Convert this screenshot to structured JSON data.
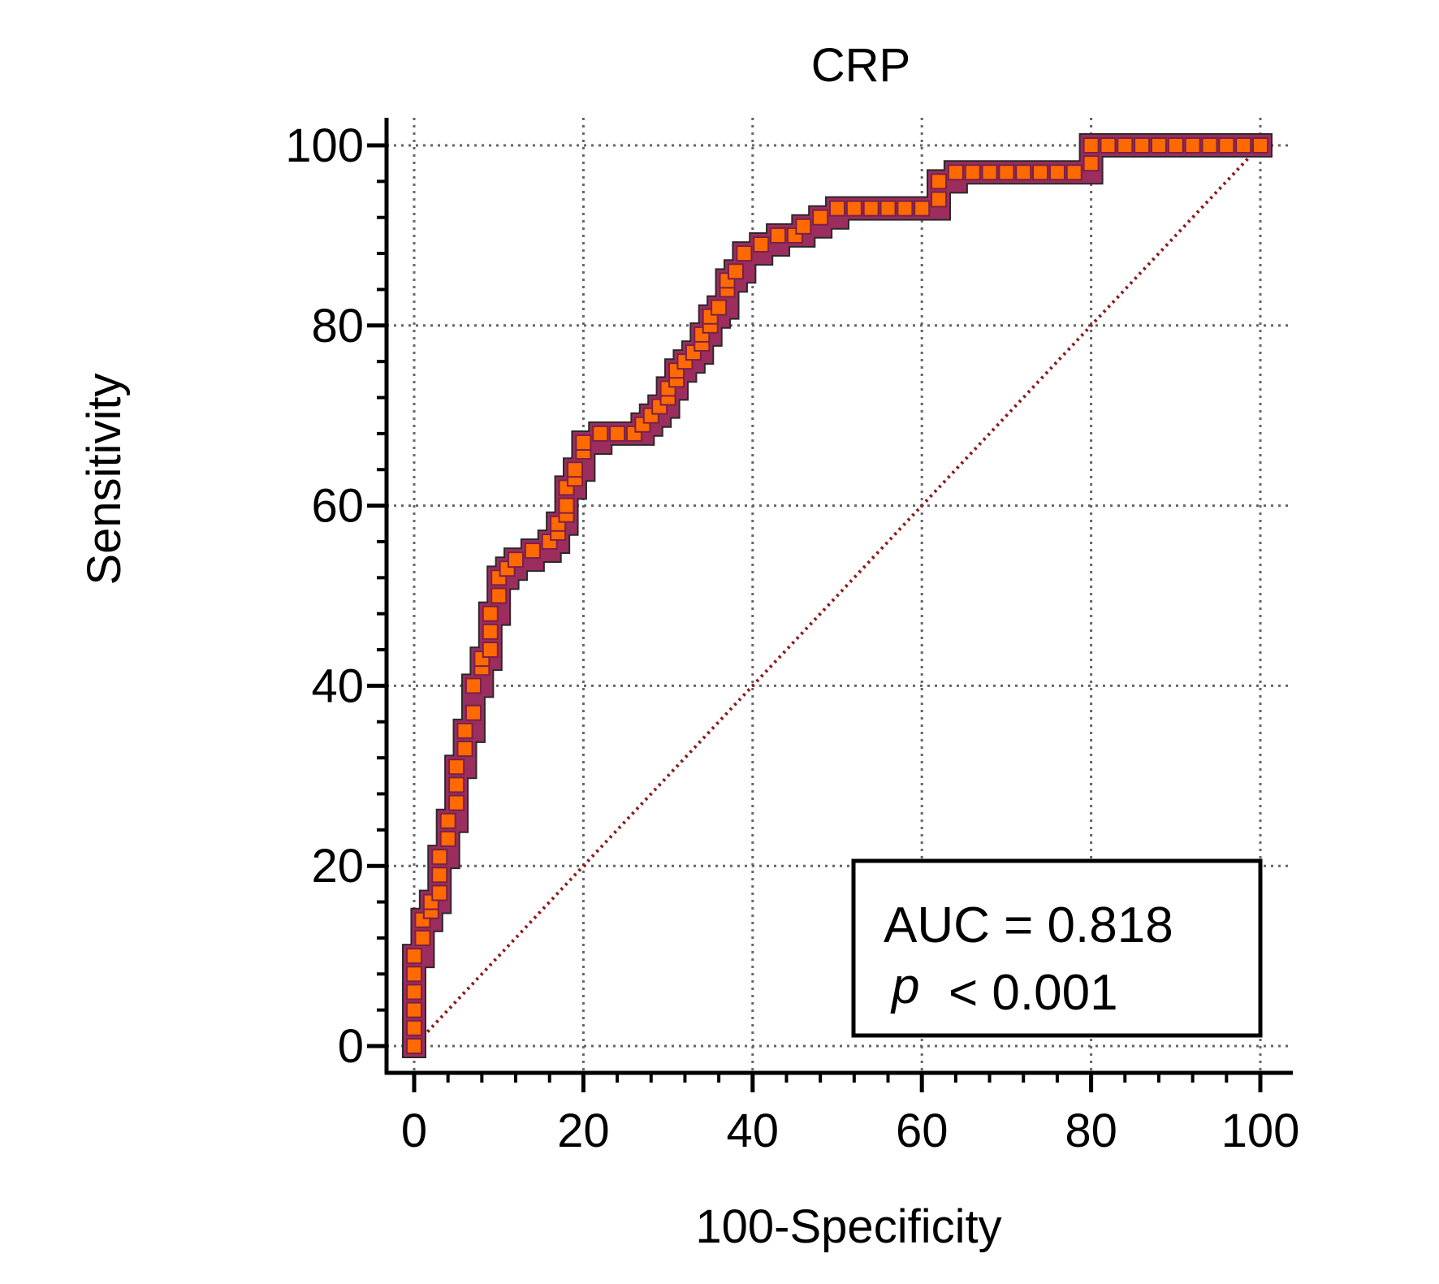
{
  "chart_data": {
    "type": "line",
    "title": "CRP",
    "xlabel": "100-Specificity",
    "ylabel": "Sensitivity",
    "xlim": [
      0,
      100
    ],
    "ylim": [
      0,
      100
    ],
    "xticks": [
      "0",
      "20",
      "40",
      "60",
      "80",
      "100"
    ],
    "yticks": [
      "0",
      "20",
      "40",
      "60",
      "80",
      "100"
    ],
    "grid": true,
    "annotation": {
      "auc_text": "AUC = 0.818",
      "p_symbol": "p",
      "p_text": "< 0.001",
      "placement": "bottom-right"
    },
    "reference_line": {
      "x": [
        0,
        100
      ],
      "y": [
        0,
        100
      ],
      "style": "dotted",
      "color": "#8b1a1a"
    },
    "series": [
      {
        "x": [
          0,
          0,
          0,
          0,
          0,
          0,
          1,
          1,
          2,
          2,
          3,
          3,
          3,
          4,
          4,
          5,
          5,
          5,
          6,
          6,
          7,
          7,
          8,
          8,
          9,
          9,
          9,
          10,
          10,
          11,
          12,
          14,
          16,
          17,
          17,
          18,
          18,
          18,
          19,
          19,
          20,
          20,
          22,
          24,
          26,
          27,
          28,
          29,
          30,
          30,
          31,
          31,
          32,
          33,
          34,
          34,
          35,
          35,
          36,
          37,
          37,
          38,
          39,
          41,
          43,
          45,
          46,
          48,
          50,
          52,
          54,
          56,
          58,
          60,
          62,
          62,
          64,
          66,
          68,
          70,
          72,
          74,
          76,
          78,
          80,
          80,
          82,
          84,
          86,
          88,
          90,
          92,
          94,
          96,
          98,
          100
        ],
        "y": [
          0,
          2,
          4,
          6,
          8,
          10,
          12,
          14,
          15,
          16,
          17,
          19,
          21,
          23,
          25,
          27,
          29,
          31,
          33,
          35,
          37,
          40,
          42,
          43,
          44,
          46,
          48,
          50,
          52,
          53,
          54,
          55,
          56,
          57,
          58,
          59,
          60,
          62,
          63,
          64,
          66,
          67,
          68,
          68,
          68,
          69,
          70,
          71,
          72,
          73,
          74,
          75,
          76,
          77,
          78,
          79,
          80,
          81,
          82,
          84,
          85,
          86,
          88,
          89,
          90,
          90,
          91,
          92,
          93,
          93,
          93,
          93,
          93,
          93,
          94,
          96,
          97,
          97,
          97,
          97,
          97,
          97,
          97,
          97,
          98,
          100,
          100,
          100,
          100,
          100,
          100,
          100,
          100,
          100,
          100,
          100
        ],
        "line_color": "#9b2d5f",
        "marker_color": "#ff6a00"
      }
    ]
  }
}
